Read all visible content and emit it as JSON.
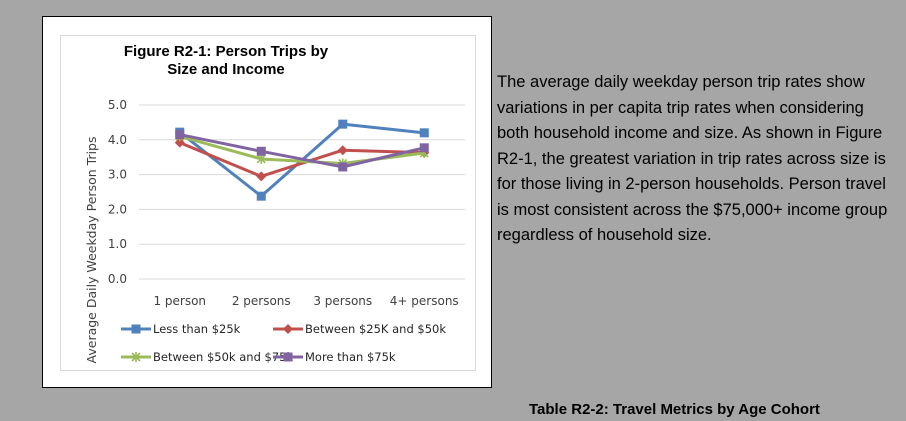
{
  "chart_data": {
    "type": "line",
    "title": "Figure R2-1:  Person Trips by Size and Income",
    "ylabel": "Average Daily Weekday Person Trips",
    "xlabel": "",
    "categories": [
      "1 person",
      "2 persons",
      "3 persons",
      "4+ persons"
    ],
    "ylim": [
      0,
      5
    ],
    "yticks": [
      "0.0",
      "1.0",
      "2.0",
      "3.0",
      "4.0",
      "5.0"
    ],
    "grid": true,
    "legend_position": "bottom",
    "series": [
      {
        "name": "Less than $25k",
        "values": [
          4.22,
          2.38,
          4.45,
          4.2
        ],
        "color": "#4f81bd",
        "marker": "square"
      },
      {
        "name": "Between $25K and $50k",
        "values": [
          3.92,
          2.95,
          3.7,
          3.63
        ],
        "color": "#c0504d",
        "marker": "diamond"
      },
      {
        "name": "Between $50k and $75k",
        "values": [
          4.1,
          3.45,
          3.32,
          3.62
        ],
        "color": "#9bbb59",
        "marker": "x"
      },
      {
        "name": "More than $75k",
        "values": [
          4.15,
          3.67,
          3.22,
          3.77
        ],
        "color": "#8064a2",
        "marker": "square"
      }
    ]
  },
  "body_text": "The average daily weekday person trip rates show variations in per capita trip rates when considering both household income and size. As shown in Figure R2-1, the greatest variation in trip rates across size is for those living in 2-person households. Person travel is most consistent across the $75,000+ income group regardless of household size.",
  "table_caption": "Table R2-2:  Travel Metrics by Age Cohort"
}
